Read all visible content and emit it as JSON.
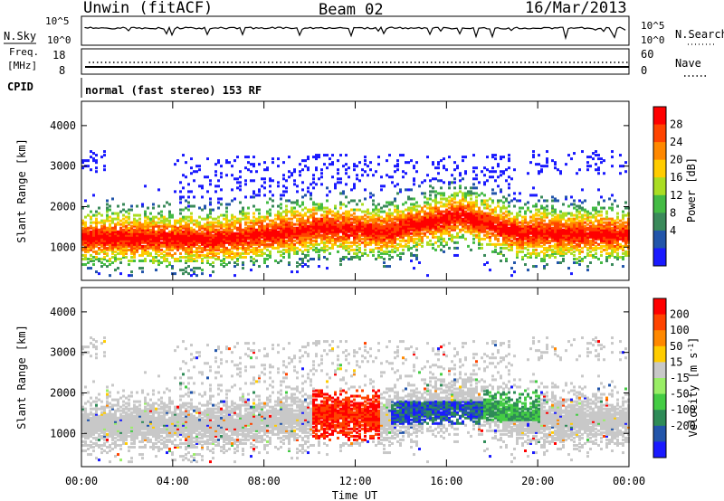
{
  "header": {
    "station": "Unwin (fitACF)",
    "beam": "Beam 02",
    "date": "16/Mar/2013"
  },
  "status_panels": {
    "noise": {
      "left_label": "N.Sky",
      "left_ticks": [
        "10^5",
        "10^0"
      ],
      "right_label": "N.Search",
      "right_ticks": [
        "10^5",
        "10^0"
      ]
    },
    "freq": {
      "left_label_1": "Freq.",
      "left_label_2": "[MHz]",
      "left_ticks": [
        "18",
        "8"
      ],
      "right_label": "Nave",
      "right_ticks": [
        "60",
        "0"
      ]
    },
    "cpid": {
      "label": "CPID",
      "text": "normal (fast stereo) 153 RF"
    }
  },
  "chart_data": [
    {
      "type": "heatmap",
      "name": "power",
      "xlabel": "",
      "ylabel": "Slant Range [km]",
      "x_ticks": [
        "00:00",
        "04:00",
        "08:00",
        "12:00",
        "16:00",
        "20:00",
        "00:00"
      ],
      "y_ticks": [
        1000,
        2000,
        3000,
        4000
      ],
      "xlim": [
        0,
        24
      ],
      "ylim": [
        180,
        4600
      ],
      "colorbar": {
        "label": "Power [dB]",
        "ticks": [
          4,
          8,
          12,
          16,
          20,
          24,
          28
        ],
        "colors": [
          "#1a1aff",
          "#2255aa",
          "#3a8a5a",
          "#44bb44",
          "#aadd22",
          "#ffcc00",
          "#ff8800",
          "#ff4400",
          "#ff0000"
        ]
      }
    },
    {
      "type": "heatmap",
      "name": "velocity",
      "xlabel": "Time UT",
      "ylabel": "Slant Range [km]",
      "x_ticks": [
        "00:00",
        "04:00",
        "08:00",
        "12:00",
        "16:00",
        "20:00",
        "00:00"
      ],
      "y_ticks": [
        1000,
        2000,
        3000,
        4000
      ],
      "xlim": [
        0,
        24
      ],
      "ylim": [
        180,
        4600
      ],
      "colorbar": {
        "label": "Velocity [m s-1]",
        "ticks": [
          "200",
          "100",
          "50",
          "15",
          "-15",
          "-50",
          "-100",
          "-200"
        ],
        "colors": [
          "#1a1aff",
          "#2255aa",
          "#2e8b57",
          "#44cc44",
          "#99ee66",
          "#c8c8c8",
          "#ffcc00",
          "#ff8800",
          "#ff4400",
          "#ff0000"
        ]
      }
    }
  ]
}
